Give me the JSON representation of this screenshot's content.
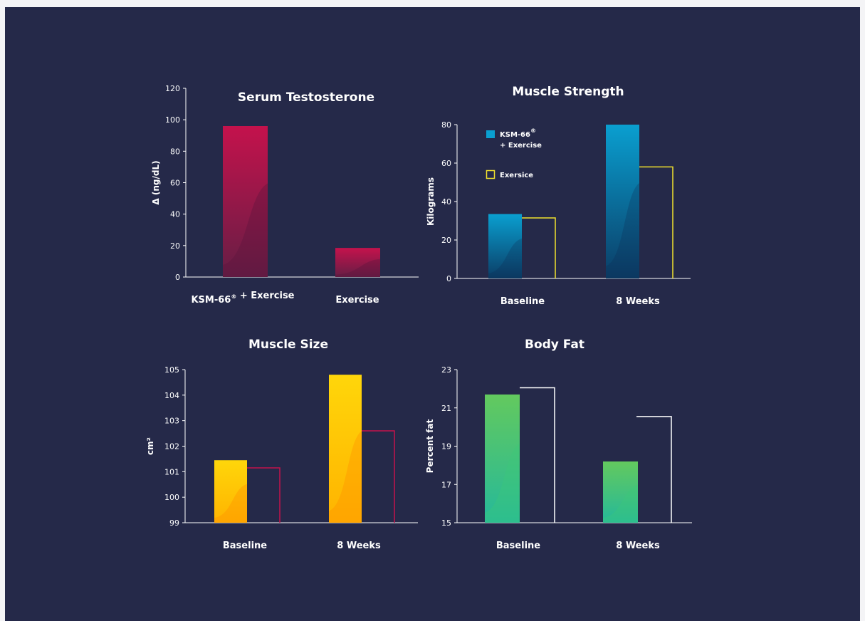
{
  "chart_data": [
    {
      "type": "bar",
      "title": "Serum Testosterone",
      "ylabel": "Δ (ng/dL)",
      "ylim": [
        0,
        120
      ],
      "yticks": [
        0,
        20,
        40,
        60,
        80,
        100,
        120
      ],
      "categories": [
        "KSM-66® + Exercise",
        "Exercise"
      ],
      "values": [
        96,
        18.5
      ],
      "color": "#c4124c"
    },
    {
      "type": "bar",
      "title": "Muscle Strength",
      "ylabel": "Kilograms",
      "ylim": [
        0,
        80
      ],
      "yticks": [
        0,
        20,
        40,
        60,
        80
      ],
      "categories": [
        "Baseline",
        "8 Weeks"
      ],
      "series": [
        {
          "name": "KSM-66® + Exercise",
          "values": [
            33.5,
            80
          ]
        },
        {
          "name": "Exersice",
          "values": [
            31.5,
            58
          ]
        }
      ],
      "legend": "top-left",
      "colors": {
        "filled": "#0a9fd0",
        "outline": "#f1e22e"
      }
    },
    {
      "type": "bar",
      "title": "Muscle Size",
      "ylabel": "cm²",
      "ylim": [
        99,
        105
      ],
      "yticks": [
        99,
        100,
        101,
        102,
        103,
        104,
        105
      ],
      "categories": [
        "Baseline",
        "8 Weeks"
      ],
      "series": [
        {
          "values": [
            101.45,
            104.8
          ]
        },
        {
          "values": [
            101.15,
            102.6
          ]
        }
      ],
      "colors": {
        "filled": "#ffc107",
        "outline": "#c4124c"
      }
    },
    {
      "type": "bar",
      "title": "Body Fat",
      "ylabel": "Percent fat",
      "ylim": [
        15,
        23
      ],
      "yticks": [
        15,
        17,
        19,
        21,
        23
      ],
      "categories": [
        "Baseline",
        "8 Weeks"
      ],
      "series": [
        {
          "values": [
            21.7,
            18.2
          ]
        },
        {
          "values": [
            22.05,
            20.55
          ]
        }
      ],
      "colors": {
        "filled": "#5ac870",
        "outline": "#ffffff"
      }
    }
  ]
}
